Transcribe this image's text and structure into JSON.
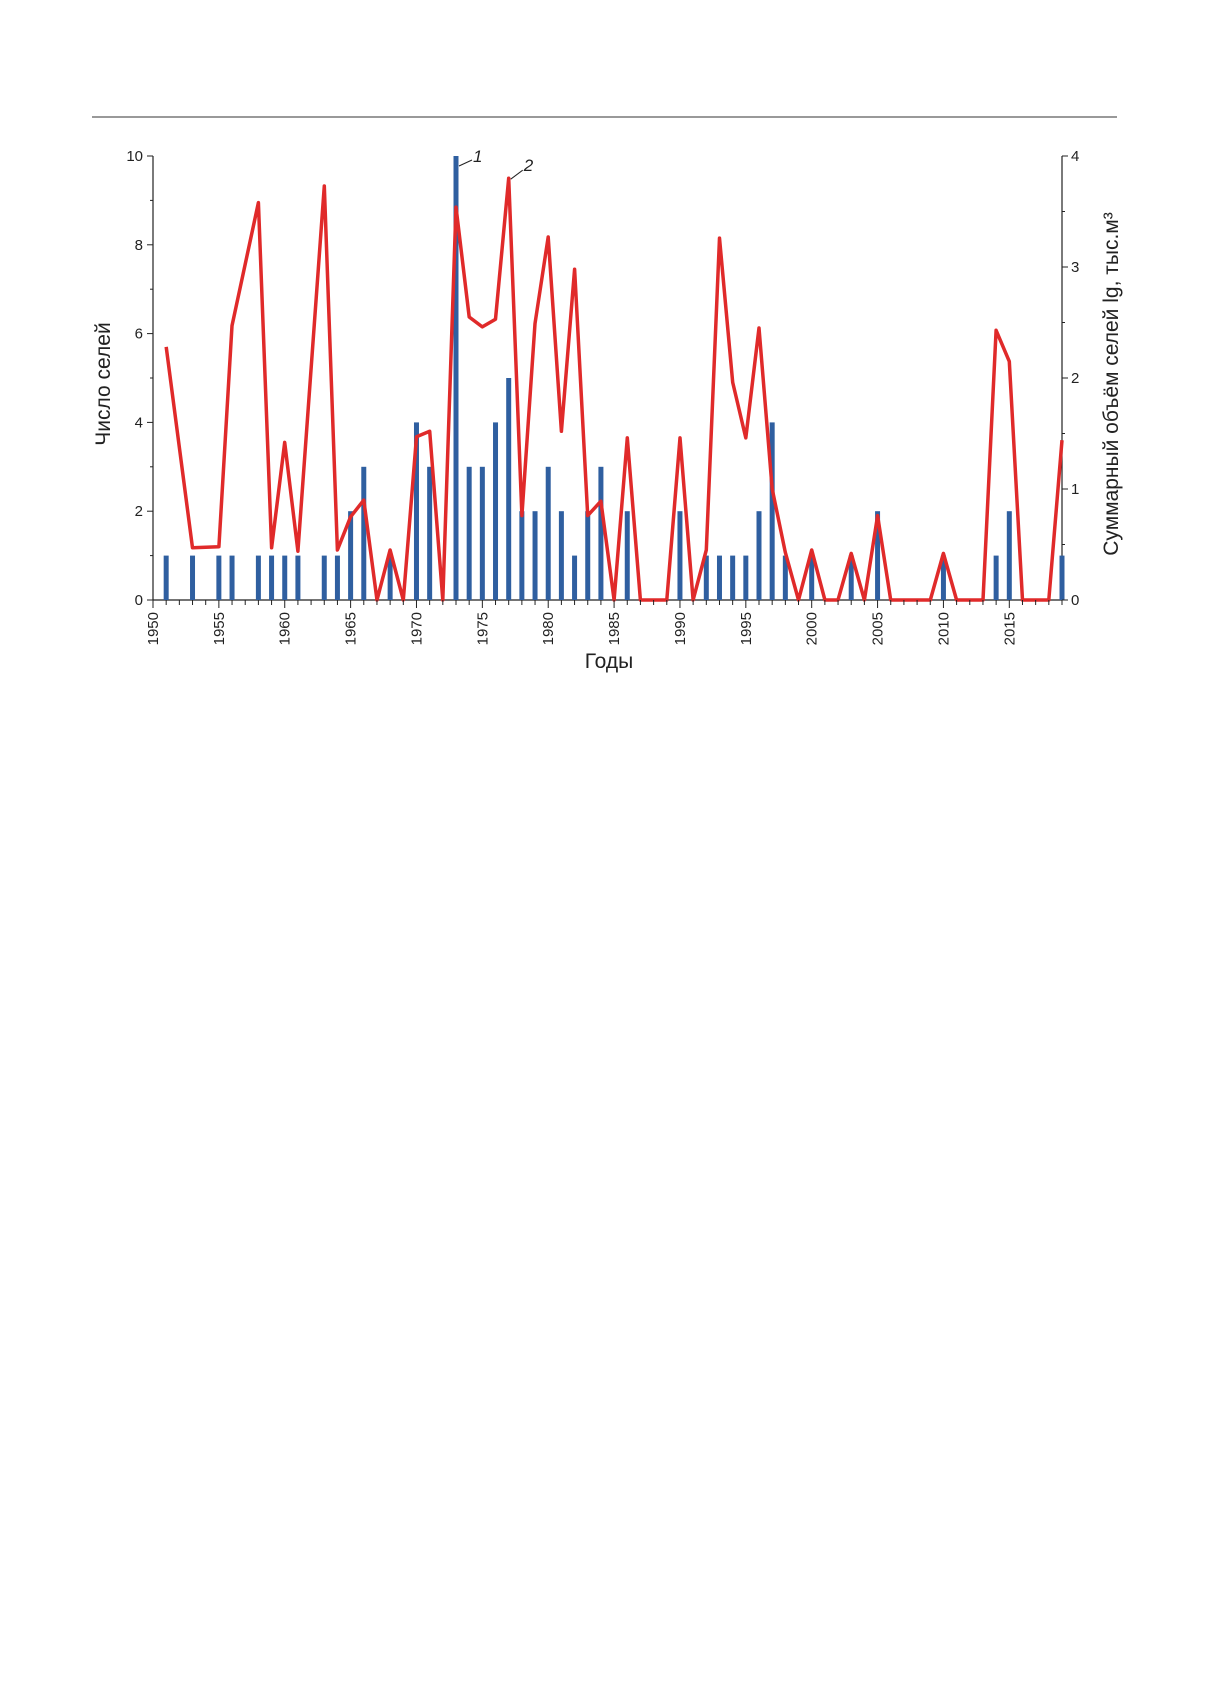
{
  "chart_data": {
    "type": "bar+line",
    "xlabel": "Годы",
    "ylabel_left": "Число селей",
    "ylabel_right": "Суммарный объём селей lg, тыс.м³",
    "xlim": [
      1950,
      2019
    ],
    "ylim_left": [
      0,
      10
    ],
    "ylim_right": [
      0,
      4
    ],
    "x_ticks": [
      "1950",
      "1955",
      "1960",
      "1965",
      "1970",
      "1975",
      "1980",
      "1985",
      "1990",
      "1995",
      "2000",
      "2005",
      "2010",
      "2015"
    ],
    "y_ticks_left": [
      "0",
      "2",
      "4",
      "6",
      "8",
      "10"
    ],
    "y_ticks_right": [
      "0",
      "1",
      "2",
      "3",
      "4"
    ],
    "grid": false,
    "colors": {
      "bars": "#2f5fa0",
      "line": "#e02a2a"
    },
    "series_labels": [
      "1",
      "2"
    ],
    "bars": {
      "series": "1",
      "x": [
        1951,
        1953,
        1955,
        1956,
        1958,
        1959,
        1960,
        1961,
        1963,
        1964,
        1965,
        1966,
        1968,
        1970,
        1971,
        1973,
        1974,
        1975,
        1976,
        1977,
        1978,
        1979,
        1980,
        1981,
        1982,
        1983,
        1984,
        1986,
        1990,
        1992,
        1993,
        1994,
        1995,
        1996,
        1997,
        1998,
        2000,
        2003,
        2005,
        2010,
        2014,
        2015,
        2019
      ],
      "values": [
        1,
        1,
        1,
        1,
        1,
        1,
        1,
        1,
        1,
        1,
        2,
        3,
        1,
        4,
        3,
        10,
        3,
        3,
        4,
        5,
        2,
        2,
        3,
        2,
        1,
        2,
        3,
        2,
        2,
        1,
        1,
        1,
        1,
        2,
        4,
        1,
        1,
        1,
        2,
        1,
        1,
        2,
        1
      ]
    },
    "line": {
      "series": "2",
      "x": [
        1951,
        1953,
        1955,
        1956,
        1958,
        1959,
        1960,
        1961,
        1963,
        1964,
        1965,
        1966,
        1967,
        1968,
        1969,
        1970,
        1971,
        1972,
        1973,
        1974,
        1975,
        1976,
        1977,
        1978,
        1979,
        1980,
        1981,
        1982,
        1983,
        1984,
        1985,
        1986,
        1987,
        1988,
        1989,
        1990,
        1991,
        1992,
        1993,
        1994,
        1995,
        1996,
        1997,
        1998,
        1999,
        2000,
        2001,
        2002,
        2003,
        2004,
        2005,
        2006,
        2007,
        2008,
        2009,
        2010,
        2011,
        2012,
        2013,
        2014,
        2015,
        2016,
        2017,
        2018,
        2019
      ],
      "values": [
        2.28,
        0.47,
        0.48,
        2.47,
        3.58,
        0.47,
        1.42,
        0.44,
        3.73,
        0.45,
        0.75,
        0.9,
        0.0,
        0.45,
        0.0,
        1.47,
        1.52,
        0.0,
        3.54,
        2.55,
        2.46,
        2.53,
        3.8,
        0.76,
        2.49,
        3.27,
        1.52,
        2.98,
        0.76,
        0.89,
        0.0,
        1.46,
        0.0,
        0.0,
        0.0,
        1.46,
        0.0,
        0.45,
        3.26,
        1.96,
        1.46,
        2.45,
        1.0,
        0.43,
        0.0,
        0.45,
        0.0,
        0.0,
        0.42,
        0.0,
        0.76,
        0.0,
        0.0,
        0.0,
        0.0,
        0.42,
        0.0,
        0.0,
        0.0,
        2.43,
        2.15,
        0.0,
        0.0,
        0.0,
        1.44
      ]
    }
  }
}
